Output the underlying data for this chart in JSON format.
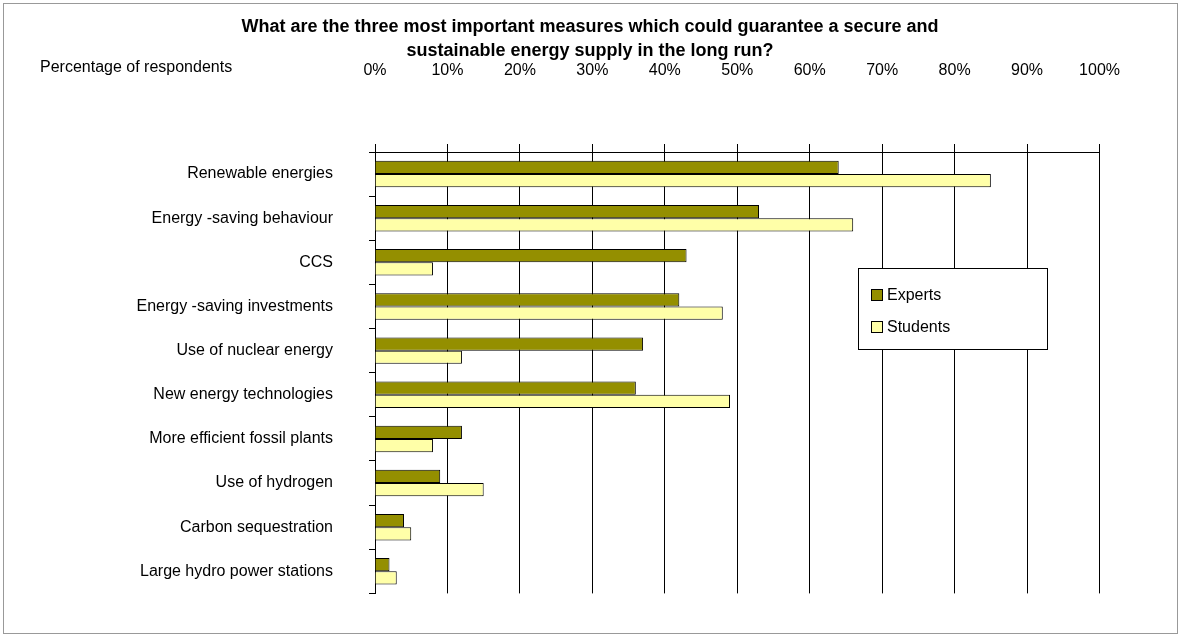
{
  "chart_data": {
    "type": "bar",
    "orientation": "horizontal",
    "title": "What are the three most important measures which could guarantee a secure and sustainable energy supply in the long run?",
    "xlabel": "Percentage of respondents",
    "categories": [
      "Renewable energies",
      "Energy -saving behaviour",
      "CCS",
      "Energy -saving investments",
      "Use of nuclear energy",
      "New energy technologies",
      "More efficient fossil plants",
      "Use of hydrogen",
      "Carbon sequestration",
      "Large hydro power stations"
    ],
    "series": [
      {
        "name": "Experts",
        "color": "#948f00",
        "values": [
          64,
          53,
          43,
          42,
          37,
          36,
          12,
          9,
          4,
          2
        ]
      },
      {
        "name": "Students",
        "color": "#ffffa8",
        "values": [
          85,
          66,
          8,
          48,
          12,
          49,
          8,
          15,
          5,
          3
        ]
      }
    ],
    "xlim": [
      0,
      100
    ],
    "xticks": [
      {
        "value": 0,
        "label": "0%"
      },
      {
        "value": 10,
        "label": "10%"
      },
      {
        "value": 20,
        "label": "20%"
      },
      {
        "value": 30,
        "label": "30%"
      },
      {
        "value": 40,
        "label": "40%"
      },
      {
        "value": 50,
        "label": "50%"
      },
      {
        "value": 60,
        "label": "60%"
      },
      {
        "value": 70,
        "label": "70%"
      },
      {
        "value": 80,
        "label": "80%"
      },
      {
        "value": 90,
        "label": "90%"
      },
      {
        "value": 100,
        "label": "100%"
      }
    ],
    "grid": "x",
    "legend": "right"
  }
}
